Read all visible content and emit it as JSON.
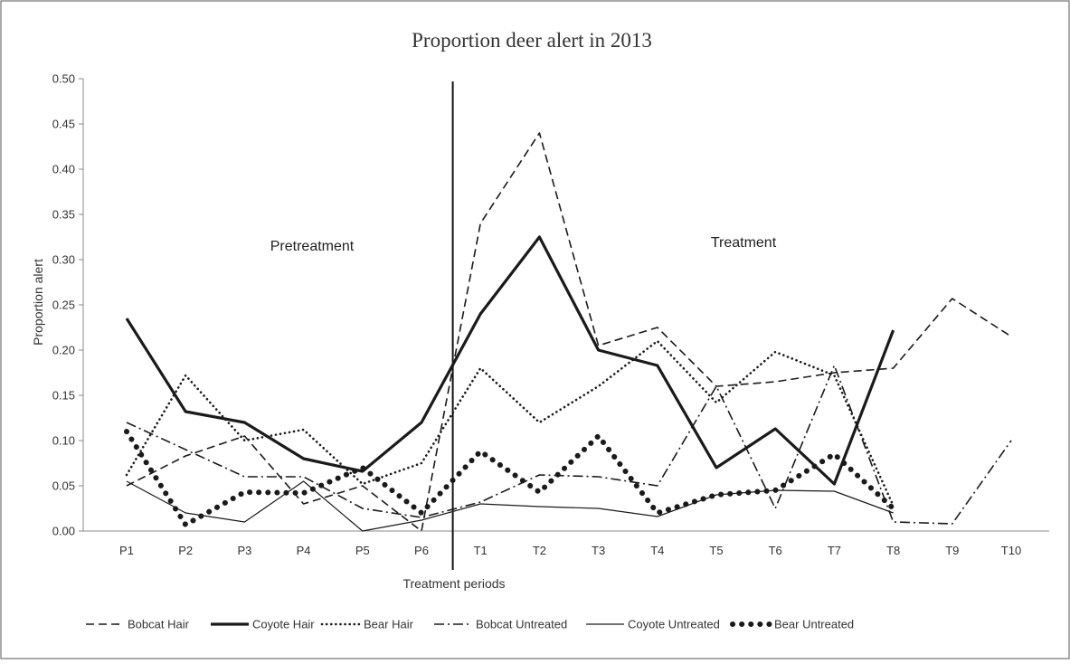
{
  "chart_data": {
    "type": "line",
    "title": "Proportion deer alert in 2013",
    "xlabel": "Treatment periods",
    "ylabel": "Proportion alert",
    "ylim": [
      0,
      0.5
    ],
    "yticks": [
      "0.00",
      "0.05",
      "0.10",
      "0.15",
      "0.20",
      "0.25",
      "0.30",
      "0.35",
      "0.40",
      "0.45",
      "0.50"
    ],
    "categories": [
      "P1",
      "P2",
      "P3",
      "P4",
      "P5",
      "P6",
      "T1",
      "T2",
      "T3",
      "T4",
      "T5",
      "T6",
      "T7",
      "T8",
      "T9",
      "T10"
    ],
    "grid": false,
    "legend_position": "bottom",
    "annotations": [
      "Pretreatment",
      "Treatment"
    ],
    "divider_between": [
      "P6",
      "T1"
    ],
    "series": [
      {
        "name": "Bobcat Hair",
        "style": "dashed",
        "values": [
          0.05,
          0.083,
          0.105,
          0.03,
          0.05,
          0.0,
          0.34,
          0.44,
          0.205,
          0.225,
          0.16,
          0.165,
          0.175,
          0.18,
          0.257,
          0.215
        ]
      },
      {
        "name": "Coyote Hair",
        "style": "thick",
        "values": [
          0.235,
          0.132,
          0.12,
          0.08,
          0.066,
          0.12,
          0.24,
          0.325,
          0.2,
          0.183,
          0.07,
          0.113,
          0.052,
          0.222,
          null,
          null
        ]
      },
      {
        "name": "Bear Hair",
        "style": "dotted",
        "values": [
          0.062,
          0.172,
          0.1,
          0.112,
          0.052,
          0.075,
          0.18,
          0.12,
          0.16,
          0.21,
          0.142,
          0.198,
          0.172,
          0.028,
          null,
          null
        ]
      },
      {
        "name": "Bobcat Untreated",
        "style": "dashdot",
        "values": [
          0.12,
          0.09,
          0.06,
          0.06,
          0.025,
          0.015,
          0.032,
          0.062,
          0.06,
          0.05,
          0.16,
          0.025,
          0.183,
          0.01,
          0.008,
          0.1
        ]
      },
      {
        "name": "Coyote Untreated",
        "style": "thin",
        "values": [
          0.055,
          0.02,
          0.01,
          0.055,
          0.0,
          0.012,
          0.03,
          0.027,
          0.025,
          0.016,
          0.04,
          0.045,
          0.044,
          0.02,
          null,
          null
        ]
      },
      {
        "name": "Bear Untreated",
        "style": "bigdots",
        "values": [
          0.11,
          0.007,
          0.043,
          0.042,
          0.07,
          0.02,
          0.088,
          0.043,
          0.105,
          0.02,
          0.04,
          0.045,
          0.085,
          0.025,
          null,
          null
        ]
      }
    ]
  }
}
